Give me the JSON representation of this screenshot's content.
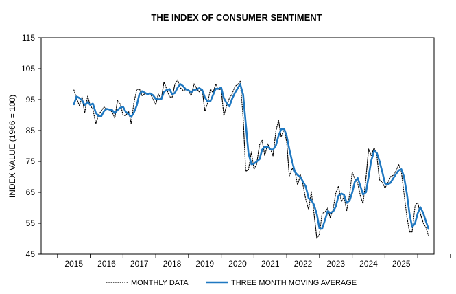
{
  "chart_data": {
    "type": "line",
    "title": "THE INDEX OF CONSUMER SENTIMENT",
    "xlabel": "",
    "ylabel": "INDEX VALUE (1966 = 100)",
    "ylim": [
      45,
      115
    ],
    "yticks": [
      45,
      55,
      65,
      75,
      85,
      95,
      105,
      115
    ],
    "xlim": [
      2014.0,
      2026.0
    ],
    "xticks": [
      2015,
      2016,
      2017,
      2018,
      2019,
      2020,
      2021,
      2022,
      2023,
      2024,
      2025
    ],
    "grid": false,
    "legend_position": "bottom",
    "colors": {
      "monthly": "#000000",
      "moving_average": "#1f78c1",
      "frame": "#000000"
    },
    "series": [
      {
        "name": "MONTHLY DATA",
        "style": "dotted",
        "x": [
          2015.0,
          2015.08,
          2015.17,
          2015.25,
          2015.33,
          2015.42,
          2015.5,
          2015.58,
          2015.67,
          2015.75,
          2015.83,
          2015.92,
          2016.0,
          2016.08,
          2016.17,
          2016.25,
          2016.33,
          2016.42,
          2016.5,
          2016.58,
          2016.67,
          2016.75,
          2016.83,
          2016.92,
          2017.0,
          2017.08,
          2017.17,
          2017.25,
          2017.33,
          2017.42,
          2017.5,
          2017.58,
          2017.67,
          2017.75,
          2017.83,
          2017.92,
          2018.0,
          2018.08,
          2018.17,
          2018.25,
          2018.33,
          2018.42,
          2018.5,
          2018.58,
          2018.67,
          2018.75,
          2018.83,
          2018.92,
          2019.0,
          2019.08,
          2019.17,
          2019.25,
          2019.33,
          2019.42,
          2019.5,
          2019.58,
          2019.67,
          2019.75,
          2019.83,
          2019.92,
          2020.0,
          2020.08,
          2020.17,
          2020.25,
          2020.33,
          2020.42,
          2020.5,
          2020.58,
          2020.67,
          2020.75,
          2020.83,
          2020.92,
          2021.0,
          2021.08,
          2021.17,
          2021.25,
          2021.33,
          2021.42,
          2021.5,
          2021.58,
          2021.67,
          2021.75,
          2021.83,
          2021.92,
          2022.0,
          2022.08,
          2022.17,
          2022.25,
          2022.33,
          2022.42,
          2022.5,
          2022.58,
          2022.67,
          2022.75,
          2022.83,
          2022.92,
          2023.0,
          2023.08,
          2023.17,
          2023.25,
          2023.33,
          2023.42,
          2023.5,
          2023.58,
          2023.67,
          2023.75,
          2023.83,
          2023.92,
          2024.0,
          2024.08,
          2024.17,
          2024.25,
          2024.33,
          2024.42,
          2024.5,
          2024.58,
          2024.67,
          2024.75,
          2024.83,
          2024.92,
          2025.0,
          2025.08,
          2025.17,
          2025.25,
          2025.33,
          2025.42,
          2025.5,
          2025.58,
          2025.67,
          2025.75,
          2025.83
        ],
        "values": [
          98.1,
          95.4,
          93.0,
          95.9,
          90.7,
          96.1,
          93.1,
          91.9,
          87.2,
          90.0,
          91.3,
          92.6,
          92.0,
          91.7,
          91.0,
          89.0,
          94.7,
          93.5,
          90.0,
          89.8,
          91.2,
          87.2,
          93.8,
          98.2,
          98.5,
          96.3,
          96.9,
          97.0,
          97.1,
          95.1,
          93.4,
          96.8,
          95.1,
          100.7,
          98.5,
          95.9,
          95.7,
          99.7,
          101.4,
          98.8,
          98.0,
          98.2,
          97.9,
          96.2,
          100.1,
          98.6,
          97.5,
          98.3,
          91.2,
          93.8,
          98.4,
          97.2,
          100.0,
          98.2,
          98.4,
          89.8,
          93.2,
          95.5,
          96.8,
          99.3,
          99.8,
          101.0,
          89.1,
          71.8,
          72.3,
          78.1,
          72.5,
          74.1,
          80.4,
          81.8,
          76.9,
          80.7,
          79.0,
          76.8,
          84.9,
          88.3,
          82.9,
          85.5,
          81.2,
          70.3,
          72.8,
          71.7,
          67.4,
          70.6,
          67.2,
          62.8,
          59.4,
          65.2,
          58.4,
          50.0,
          51.5,
          58.2,
          58.6,
          59.9,
          56.8,
          59.7,
          64.9,
          67.0,
          62.0,
          63.7,
          59.0,
          64.2,
          71.5,
          69.4,
          67.9,
          63.8,
          61.3,
          69.7,
          79.0,
          76.9,
          79.4,
          77.2,
          69.1,
          68.2,
          66.4,
          67.9,
          70.1,
          70.5,
          71.8,
          74.0,
          71.7,
          64.7,
          57.0,
          52.2,
          52.2,
          60.7,
          61.7,
          58.2,
          55.1,
          53.6,
          51.0
        ]
      },
      {
        "name": "THREE MONTH MOVING AVERAGE",
        "style": "solid",
        "x": [
          2015.0,
          2015.08,
          2015.17,
          2015.25,
          2015.33,
          2015.42,
          2015.5,
          2015.58,
          2015.67,
          2015.75,
          2015.83,
          2015.92,
          2016.0,
          2016.08,
          2016.17,
          2016.25,
          2016.33,
          2016.42,
          2016.5,
          2016.58,
          2016.67,
          2016.75,
          2016.83,
          2016.92,
          2017.0,
          2017.08,
          2017.17,
          2017.25,
          2017.33,
          2017.42,
          2017.5,
          2017.58,
          2017.67,
          2017.75,
          2017.83,
          2017.92,
          2018.0,
          2018.08,
          2018.17,
          2018.25,
          2018.33,
          2018.42,
          2018.5,
          2018.58,
          2018.67,
          2018.75,
          2018.83,
          2018.92,
          2019.0,
          2019.08,
          2019.17,
          2019.25,
          2019.33,
          2019.42,
          2019.5,
          2019.58,
          2019.67,
          2019.75,
          2019.83,
          2019.92,
          2020.0,
          2020.08,
          2020.17,
          2020.25,
          2020.33,
          2020.42,
          2020.5,
          2020.58,
          2020.67,
          2020.75,
          2020.83,
          2020.92,
          2021.0,
          2021.08,
          2021.17,
          2021.25,
          2021.33,
          2021.42,
          2021.5,
          2021.58,
          2021.67,
          2021.75,
          2021.83,
          2021.92,
          2022.0,
          2022.08,
          2022.17,
          2022.25,
          2022.33,
          2022.42,
          2022.5,
          2022.58,
          2022.67,
          2022.75,
          2022.83,
          2022.92,
          2023.0,
          2023.08,
          2023.17,
          2023.25,
          2023.33,
          2023.42,
          2023.5,
          2023.58,
          2023.67,
          2023.75,
          2023.83,
          2023.92,
          2024.0,
          2024.08,
          2024.17,
          2024.25,
          2024.33,
          2024.42,
          2024.5,
          2024.58,
          2024.67,
          2024.75,
          2024.83,
          2024.92,
          2025.0,
          2025.08,
          2025.17,
          2025.25,
          2025.33,
          2025.42,
          2025.5,
          2025.58,
          2025.67,
          2025.75,
          2025.83
        ],
        "values": [
          93.5,
          96.0,
          95.5,
          94.8,
          93.2,
          94.2,
          93.3,
          93.7,
          90.7,
          89.7,
          89.5,
          91.3,
          92.0,
          91.8,
          91.6,
          90.6,
          91.6,
          92.4,
          92.7,
          91.1,
          90.3,
          89.4,
          90.7,
          93.1,
          96.8,
          97.7,
          97.2,
          96.7,
          97.0,
          96.4,
          95.2,
          95.1,
          95.1,
          97.5,
          98.1,
          98.4,
          96.7,
          97.1,
          98.9,
          100.0,
          99.4,
          98.3,
          98.0,
          97.4,
          98.1,
          98.3,
          98.7,
          98.1,
          95.7,
          94.4,
          94.5,
          96.5,
          98.5,
          98.5,
          98.9,
          95.5,
          93.8,
          92.8,
          95.2,
          97.2,
          98.6,
          100.0,
          96.6,
          87.3,
          77.7,
          74.1,
          74.3,
          74.9,
          75.7,
          78.8,
          79.7,
          79.8,
          78.9,
          78.8,
          80.2,
          83.3,
          85.4,
          85.6,
          83.2,
          79.0,
          74.8,
          71.6,
          70.6,
          69.9,
          68.4,
          66.9,
          63.1,
          62.5,
          61.0,
          57.9,
          53.3,
          53.2,
          56.1,
          58.9,
          58.4,
          58.8,
          60.5,
          63.9,
          64.6,
          64.2,
          61.6,
          62.3,
          64.9,
          68.4,
          69.6,
          67.0,
          64.3,
          65.0,
          70.0,
          75.2,
          78.4,
          77.8,
          75.2,
          71.5,
          67.9,
          67.5,
          68.1,
          69.5,
          70.8,
          72.1,
          72.5,
          70.1,
          64.5,
          58.0,
          53.8,
          55.0,
          58.2,
          60.2,
          58.3,
          55.6,
          53.2
        ]
      }
    ]
  }
}
